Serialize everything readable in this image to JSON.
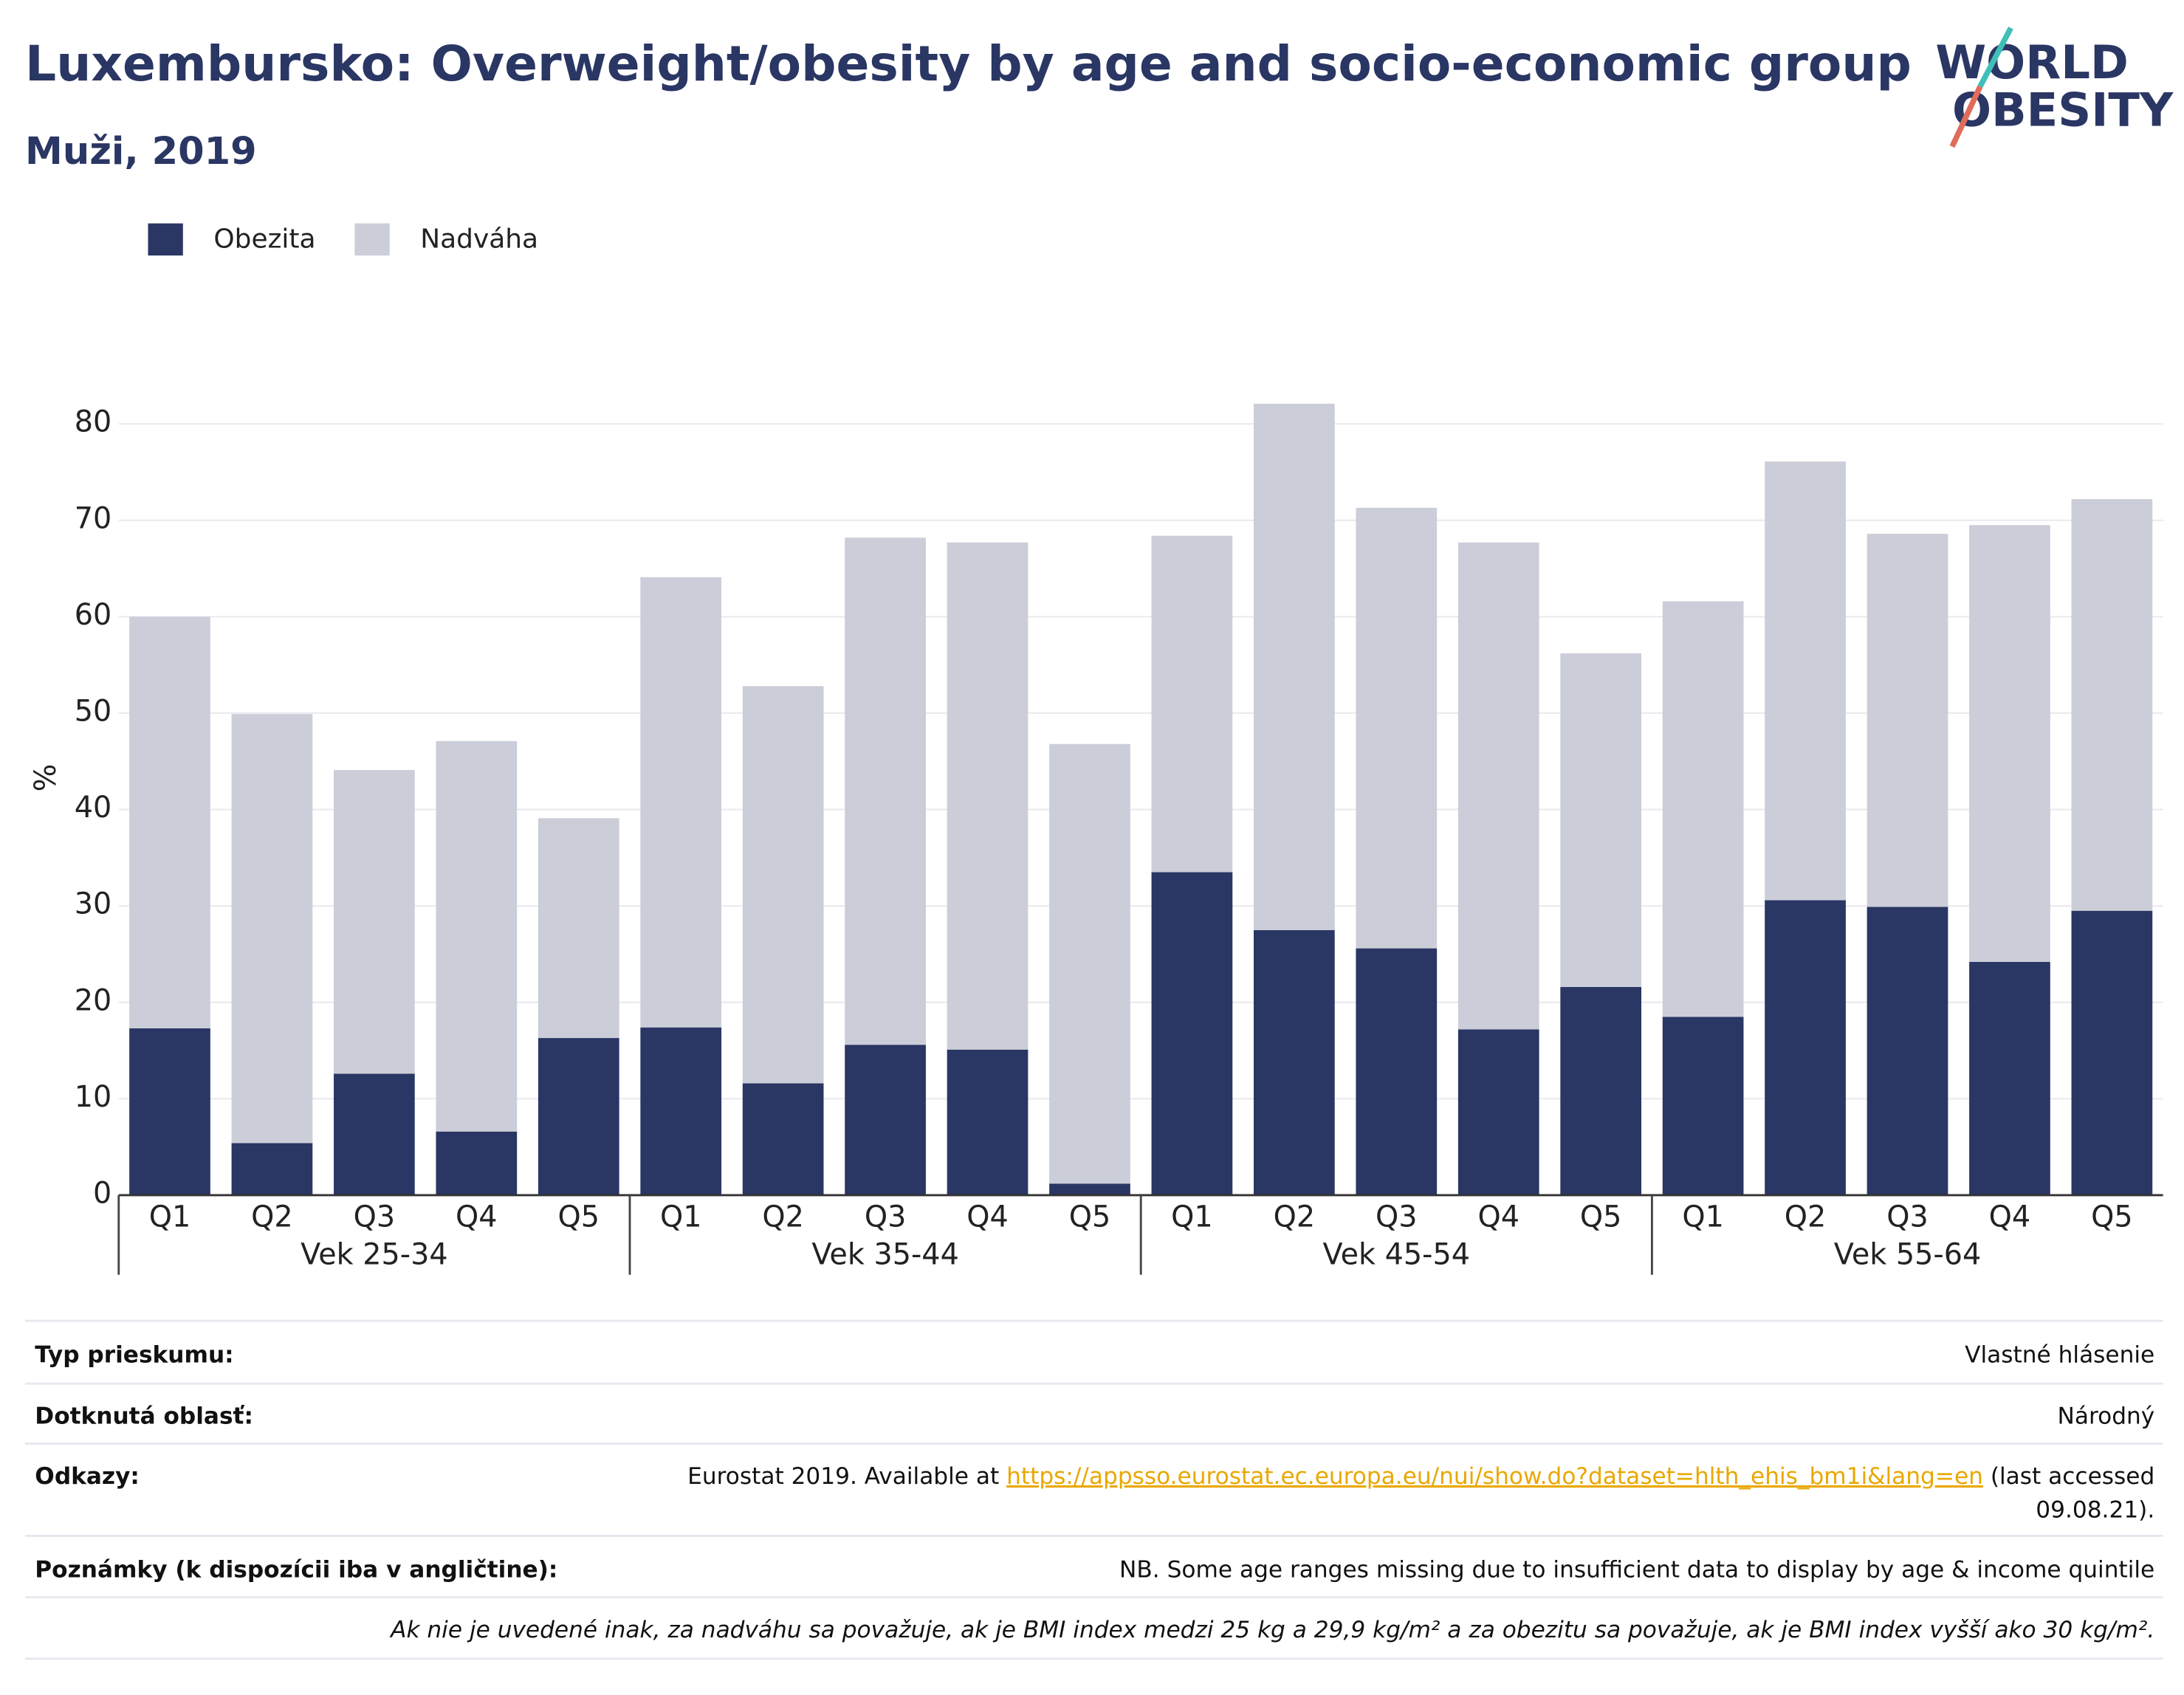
{
  "chart_data": {
    "type": "stacked-bar",
    "title": "Luxembursko: Overweight/obesity by age and socio-economic group",
    "subtitle": "Muži, 2019",
    "y_label": "%",
    "categories": [
      "Q1",
      "Q2",
      "Q3",
      "Q4",
      "Q5",
      "Q1",
      "Q2",
      "Q3",
      "Q4",
      "Q5",
      "Q1",
      "Q2",
      "Q3",
      "Q4",
      "Q5",
      "Q1",
      "Q2",
      "Q3",
      "Q4",
      "Q5"
    ],
    "groups": [
      "Vek 25-34",
      "Vek 35-44",
      "Vek 45-54",
      "Vek 55-64"
    ],
    "series": [
      {
        "name": "Obezita",
        "color": "#2a3663",
        "values": [
          17.3,
          5.4,
          12.6,
          6.6,
          16.3,
          17.4,
          11.6,
          15.6,
          15.1,
          1.2,
          33.5,
          27.5,
          25.6,
          17.2,
          21.6,
          18.5,
          30.6,
          29.9,
          24.2,
          29.5
        ]
      },
      {
        "name": "Nadváha",
        "color": "#cbcdd8",
        "values": [
          42.7,
          44.5,
          31.5,
          40.5,
          22.8,
          46.7,
          41.2,
          52.6,
          52.6,
          45.6,
          34.9,
          54.6,
          45.7,
          50.5,
          34.6,
          43.1,
          45.5,
          38.7,
          45.3,
          42.7
        ]
      }
    ],
    "ylim": [
      0,
      84
    ],
    "yticks": [
      0,
      10,
      20,
      30,
      40,
      50,
      60,
      70,
      80
    ],
    "grid": true
  },
  "logo": [
    "WORLD",
    "OBESITY"
  ],
  "footer": {
    "rows": [
      {
        "label": "Typ prieskumu:",
        "value": "Vlastné hlásenie"
      },
      {
        "label": "Dotknutá oblasť:",
        "value": "Národný"
      },
      {
        "label": "Odkazy:",
        "value": [
          "Eurostat 2019. Available at ",
          "https://appsso.eurostat.ec.europa.eu/nui/show.do?dataset=hlth_ehis_bm1i&lang=en",
          " (last accessed",
          "09.08.21)."
        ]
      },
      {
        "label": "Poznámky (k dispozícii iba v angličtine):",
        "value": "NB. Some age ranges missing due to insufficient data to display by age & income quintile"
      }
    ],
    "note": "Ak nie je uvedené inak, za nadváhu sa považuje, ak je BMI index medzi 25 kg a 29,9 kg/m² a za obezitu sa považuje, ak je BMI index vyšší ako 30 kg/m²."
  }
}
